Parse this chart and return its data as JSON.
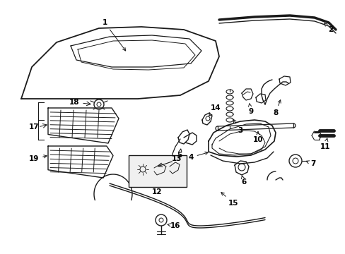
{
  "background_color": "#ffffff",
  "line_color": "#1a1a1a",
  "text_color": "#000000",
  "figure_width": 4.89,
  "figure_height": 3.6,
  "dpi": 100
}
